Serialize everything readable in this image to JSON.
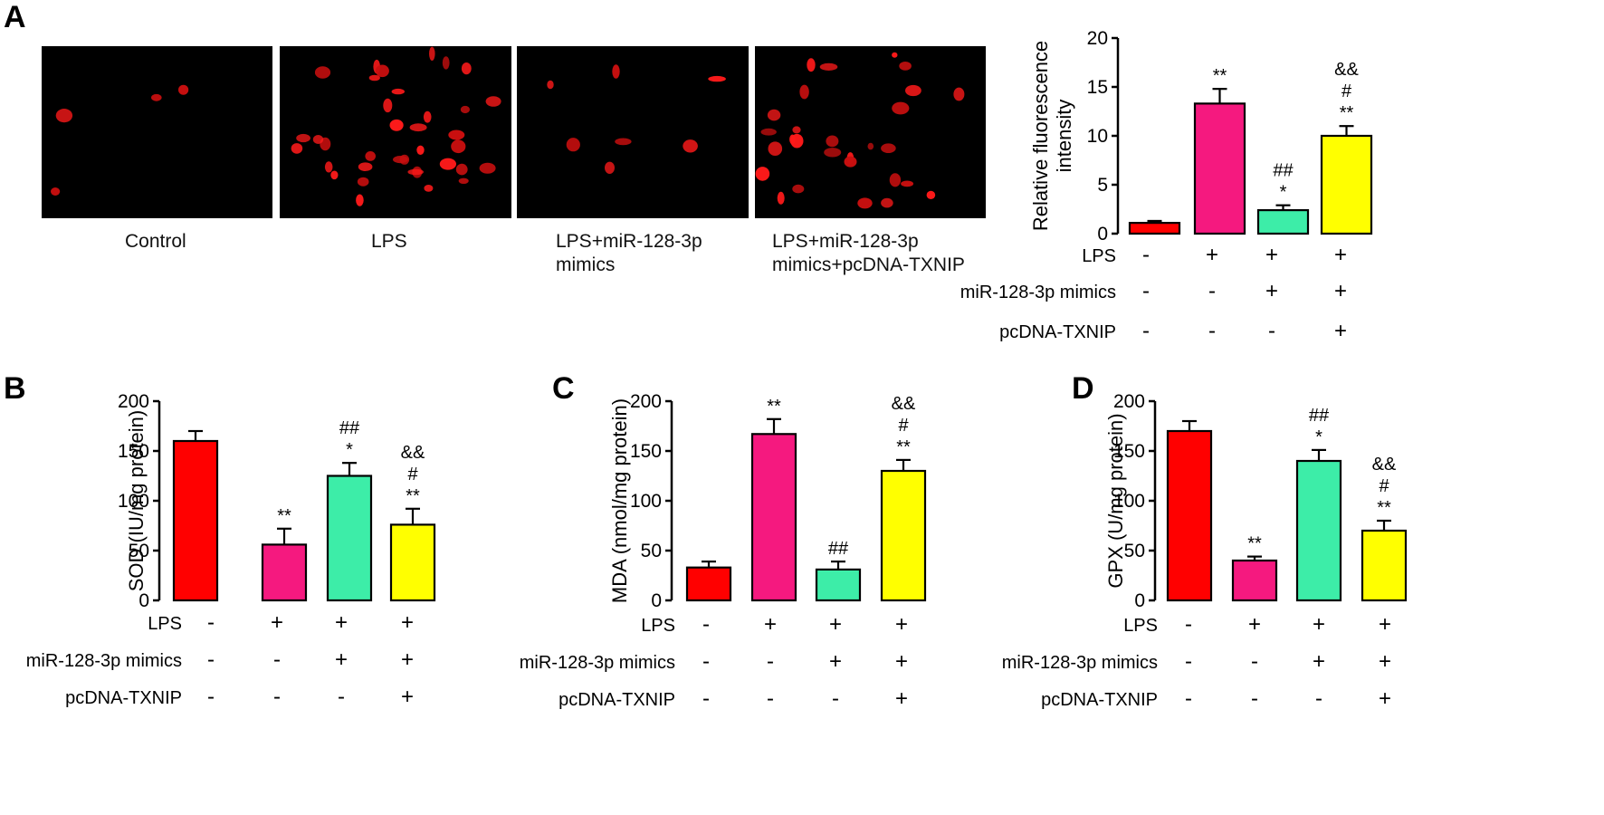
{
  "colors": [
    "#ff0000",
    "#f5197f",
    "#3deda8",
    "#ffff00"
  ],
  "micrographs": [
    {
      "label": "Control",
      "cells": 4
    },
    {
      "label": "LPS",
      "cells": 36
    },
    {
      "label": "LPS+miR-128-3p\nmimics",
      "cells": 7
    },
    {
      "label": "LPS+miR-128-3p\nmimics+pcDNA-TXNIP",
      "cells": 28
    }
  ],
  "treatment_rows": [
    {
      "label": "LPS",
      "signs": [
        "-",
        "+",
        "+",
        "+"
      ]
    },
    {
      "label": "miR-128-3p mimics",
      "signs": [
        "-",
        "-",
        "+",
        "+"
      ]
    },
    {
      "label": "pcDNA-TXNIP",
      "signs": [
        "-",
        "-",
        "-",
        "+"
      ]
    }
  ],
  "chart_data": [
    {
      "panel": "A",
      "type": "bar",
      "ylabel": [
        "Relative fluorescence",
        "intensity"
      ],
      "ylim": [
        0,
        20
      ],
      "ticks": [
        0,
        5,
        10,
        15,
        20
      ],
      "values": [
        1.1,
        13.3,
        2.4,
        10.0
      ],
      "errors": [
        0.2,
        1.5,
        0.5,
        1.0
      ],
      "annotations": [
        [],
        [
          "**"
        ],
        [
          "##",
          "*"
        ],
        [
          "&&",
          "#",
          "**"
        ]
      ]
    },
    {
      "panel": "B",
      "type": "bar",
      "ylabel": [
        "SOD (IU/mg protein)"
      ],
      "ylim": [
        0,
        200
      ],
      "ticks": [
        0,
        50,
        100,
        150,
        200
      ],
      "values": [
        160,
        56,
        125,
        76
      ],
      "errors": [
        10,
        16,
        13,
        16
      ],
      "annotations": [
        [],
        [
          "**"
        ],
        [
          "##",
          "*"
        ],
        [
          "&&",
          "#",
          "**"
        ]
      ]
    },
    {
      "panel": "C",
      "type": "bar",
      "ylabel": [
        "MDA (nmol/mg protein)"
      ],
      "ylim": [
        0,
        200
      ],
      "ticks": [
        0,
        50,
        100,
        150,
        200
      ],
      "values": [
        33,
        167,
        31,
        130
      ],
      "errors": [
        6,
        15,
        8,
        11
      ],
      "annotations": [
        [],
        [
          "**"
        ],
        [
          "##"
        ],
        [
          "&&",
          "#",
          "**"
        ]
      ]
    },
    {
      "panel": "D",
      "type": "bar",
      "ylabel": [
        "GPX (U/mg protein)"
      ],
      "ylim": [
        0,
        200
      ],
      "ticks": [
        0,
        50,
        100,
        150,
        200
      ],
      "values": [
        170,
        40,
        140,
        70
      ],
      "errors": [
        10,
        4,
        11,
        10
      ],
      "annotations": [
        [],
        [
          "**"
        ],
        [
          "##",
          "*"
        ],
        [
          "&&",
          "#",
          "**"
        ]
      ]
    }
  ]
}
